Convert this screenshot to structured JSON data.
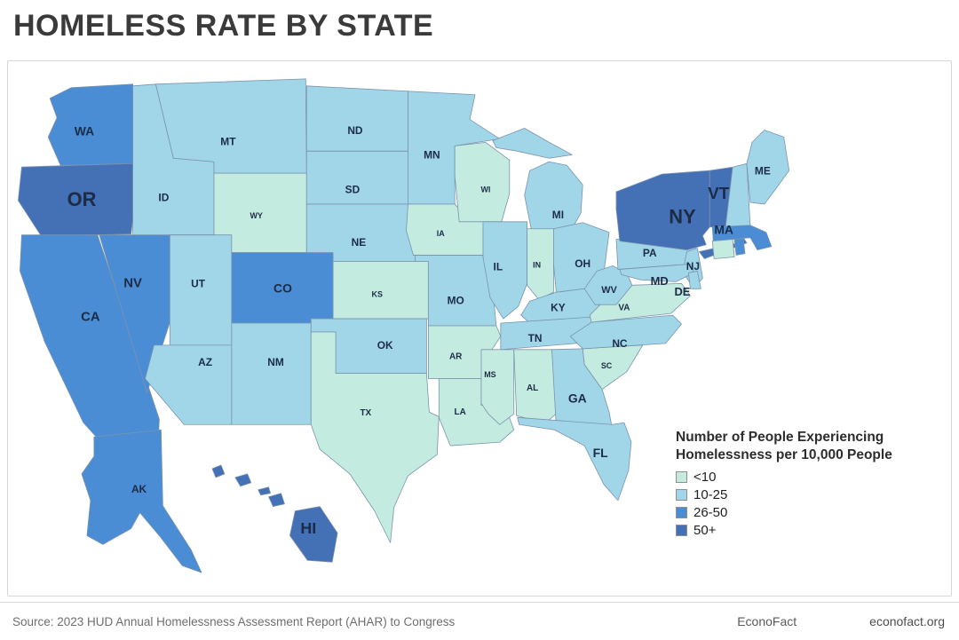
{
  "header": {
    "title": "HOMELESS RATE BY STATE"
  },
  "legend": {
    "title_line1": "Number of People Experiencing",
    "title_line2": "Homelessness per 10,000 People",
    "items": [
      {
        "label": "<10",
        "color": "#c3ebdf"
      },
      {
        "label": "10-25",
        "color": "#a0d6e8"
      },
      {
        "label": "26-50",
        "color": "#4a8dd4"
      },
      {
        "label": "50+",
        "color": "#4470b6"
      }
    ]
  },
  "footer": {
    "source": "Source: 2023 HUD Annual Homelessness Assessment Report (AHAR) to Congress",
    "org": "EconoFact",
    "site": "econofact.org"
  },
  "chart_data": {
    "type": "choropleth",
    "title": "Homeless Rate by State",
    "unit": "Number of People Experiencing Homelessness per 10,000 People",
    "source": "2023 HUD Annual Homelessness Assessment Report (AHAR) to Congress",
    "buckets": [
      "<10",
      "10-25",
      "26-50",
      "50+"
    ],
    "legend_position": "bottom-right",
    "states": {
      "WA": "26-50",
      "OR": "50+",
      "CA": "26-50",
      "NV": "26-50",
      "ID": "10-25",
      "MT": "10-25",
      "WY": "<10",
      "UT": "10-25",
      "CO": "26-50",
      "AZ": "10-25",
      "NM": "10-25",
      "ND": "10-25",
      "SD": "10-25",
      "NE": "10-25",
      "KS": "<10",
      "OK": "10-25",
      "TX": "<10",
      "MN": "10-25",
      "IA": "<10",
      "MO": "10-25",
      "AR": "<10",
      "LA": "<10",
      "WI": "<10",
      "IL": "10-25",
      "MS": "<10",
      "MI": "10-25",
      "IN": "<10",
      "OH": "10-25",
      "KY": "10-25",
      "TN": "10-25",
      "AL": "<10",
      "GA": "10-25",
      "FL": "10-25",
      "SC": "<10",
      "NC": "10-25",
      "VA": "<10",
      "WV": "10-25",
      "PA": "10-25",
      "NY": "50+",
      "VT": "50+",
      "NH": "10-25",
      "ME": "10-25",
      "MA": "26-50",
      "CT": "<10",
      "RI": "26-50",
      "NJ": "10-25",
      "MD": "10-25",
      "DE": "10-25",
      "AK": "26-50",
      "HI": "50+"
    }
  }
}
